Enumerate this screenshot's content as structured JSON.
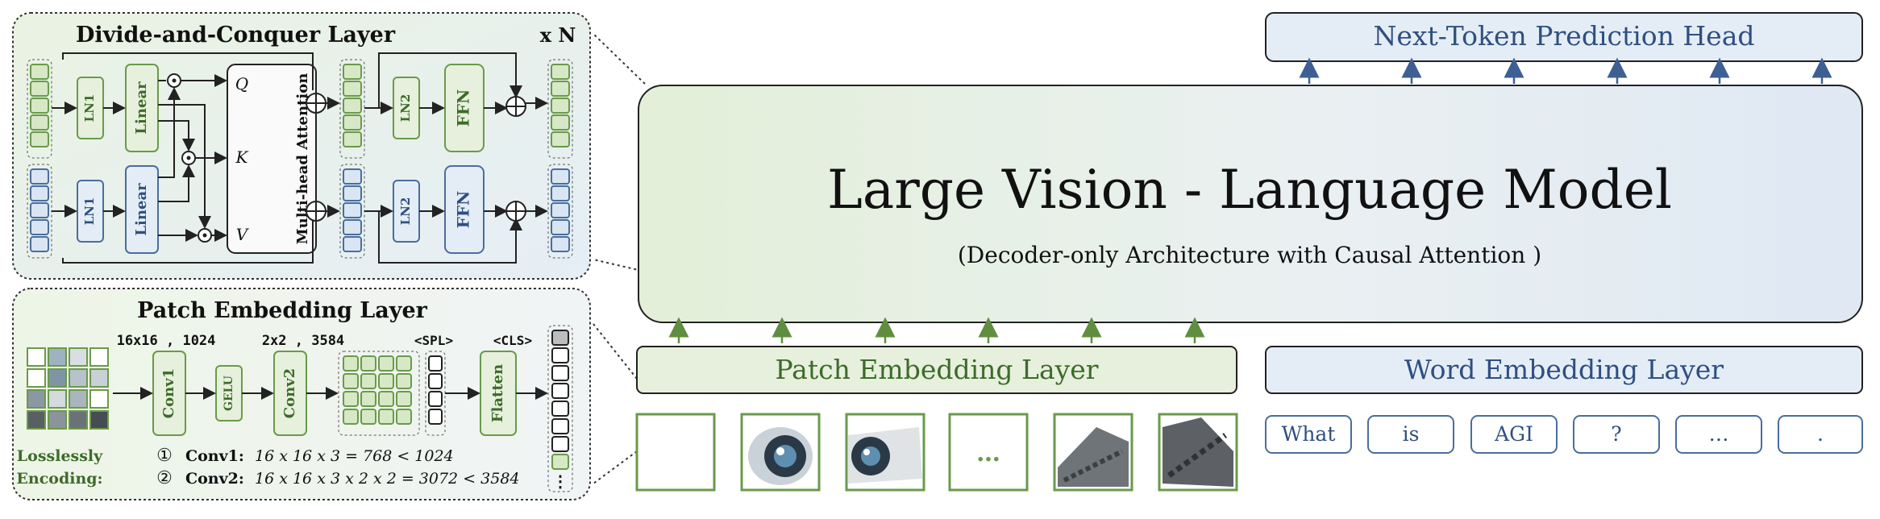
{
  "main_model": {
    "title": "Large  Vision - Language  Model",
    "subtitle": "(Decoder-only Architecture with Causal Attention )"
  },
  "head": {
    "label": "Next-Token Prediction Head"
  },
  "patch_embed_bar": {
    "label": "Patch  Embedding  Layer"
  },
  "word_embed_bar": {
    "label": "Word Embedding Layer"
  },
  "word_tokens": [
    "What",
    "is",
    "AGI",
    "?",
    "…",
    "."
  ],
  "image_tiles": {
    "ellipsis": "…"
  },
  "dc_layer": {
    "title": "Divide-and-Conquer Layer",
    "repeat": "x N",
    "ln1": "LN1",
    "ln2": "LN2",
    "linear": "Linear",
    "ffn": "FFN",
    "attention": "Multi-head Attention",
    "q": "Q",
    "k": "K",
    "v": "V"
  },
  "pe_layer": {
    "title": "Patch   Embedding   Layer",
    "shape1": "16x16 , 1024",
    "shape2": "2x2 , 3584",
    "spl": "<SPL>",
    "cls": "<CLS>",
    "conv1": "Conv1",
    "gelu": "GELU",
    "conv2": "Conv2",
    "flatten": "Flatten",
    "lossless_line1": "Losslessly",
    "lossless_line2": "Encoding:",
    "eq1_num": "①",
    "eq1_label": "Conv1:",
    "eq1_expr": "16 x 16 x 3  =  768  <  1024",
    "eq2_num": "②",
    "eq2_label": "Conv2:",
    "eq2_expr": "16 x 16 x 3 x 2 x 2  =  3072  <  3584",
    "dots": "⋮"
  },
  "colors": {
    "green_fill": "#e6f0dc",
    "green_stroke": "#6a9a4a",
    "green_text": "#3d6b2a",
    "blue_fill": "#e4edf6",
    "blue_stroke": "#4a6e9c",
    "blue_text": "#2f4f80",
    "arrow_green": "#5f8f3e",
    "arrow_blue": "#3d5f94"
  }
}
